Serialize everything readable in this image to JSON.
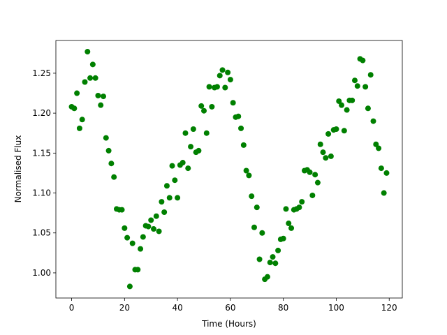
{
  "chart_data": {
    "type": "scatter",
    "xlabel": "Time (Hours)",
    "ylabel": "Normalised Flux",
    "color": "#008000",
    "xlim": [
      -5.95,
      124.95
    ],
    "ylim": [
      0.9685,
      1.291
    ],
    "xticks": [
      0,
      20,
      40,
      60,
      80,
      100,
      120
    ],
    "yticks": [
      {
        "value": 1.0,
        "label": "1.00"
      },
      1.05,
      {
        "value": 1.1,
        "label": "1.10"
      },
      1.15,
      {
        "value": 1.2,
        "label": "1.20"
      },
      1.25
    ],
    "x": [
      0,
      1,
      2,
      3,
      4,
      5,
      6,
      7,
      8,
      9,
      10,
      11,
      12,
      13,
      14,
      15,
      16,
      17,
      18,
      19,
      20,
      21,
      22,
      23,
      24,
      25,
      26,
      27,
      28,
      29,
      30,
      31,
      32,
      33,
      34,
      35,
      36,
      37,
      38,
      39,
      40,
      41,
      42,
      43,
      44,
      45,
      46,
      47,
      48,
      49,
      50,
      51,
      52,
      53,
      54,
      55,
      56,
      57,
      58,
      59,
      60,
      61,
      62,
      63,
      64,
      65,
      66,
      67,
      68,
      69,
      70,
      71,
      72,
      73,
      74,
      75,
      76,
      77,
      78,
      79,
      80,
      81,
      82,
      83,
      84,
      85,
      86,
      87,
      88,
      89,
      90,
      91,
      92,
      93,
      94,
      95,
      96,
      97,
      98,
      99,
      100,
      101,
      102,
      103,
      104,
      105,
      106,
      107,
      108,
      109,
      110,
      111,
      112,
      113,
      114,
      115,
      116,
      117,
      118,
      119
    ],
    "values": [
      1.208,
      1.206,
      1.225,
      1.181,
      1.192,
      1.239,
      1.277,
      1.244,
      1.261,
      1.244,
      1.222,
      1.21,
      1.221,
      1.169,
      1.153,
      1.137,
      1.12,
      1.08,
      1.079,
      1.079,
      1.056,
      1.044,
      0.983,
      1.037,
      1.004,
      1.004,
      1.03,
      1.045,
      1.059,
      1.058,
      1.066,
      1.055,
      1.071,
      1.052,
      1.089,
      1.076,
      1.109,
      1.094,
      1.134,
      1.116,
      1.094,
      1.135,
      1.138,
      1.175,
      1.131,
      1.158,
      1.18,
      1.151,
      1.153,
      1.209,
      1.203,
      1.175,
      1.233,
      1.208,
      1.232,
      1.233,
      1.247,
      1.254,
      1.232,
      1.251,
      1.242,
      1.213,
      1.195,
      1.196,
      1.181,
      1.16,
      1.128,
      1.122,
      1.096,
      1.057,
      1.082,
      1.017,
      1.05,
      0.992,
      0.995,
      1.013,
      1.02,
      1.012,
      1.028,
      1.042,
      1.043,
      1.08,
      1.062,
      1.056,
      1.079,
      1.08,
      1.082,
      1.089,
      1.128,
      1.129,
      1.126,
      1.097,
      1.123,
      1.113,
      1.161,
      1.151,
      1.144,
      1.174,
      1.146,
      1.179,
      1.18,
      1.215,
      1.21,
      1.178,
      1.204,
      1.216,
      1.216,
      1.241,
      1.234,
      1.268,
      1.266,
      1.233,
      1.206,
      1.248,
      1.19,
      1.161,
      1.156,
      1.131,
      1.1,
      1.125
    ]
  }
}
